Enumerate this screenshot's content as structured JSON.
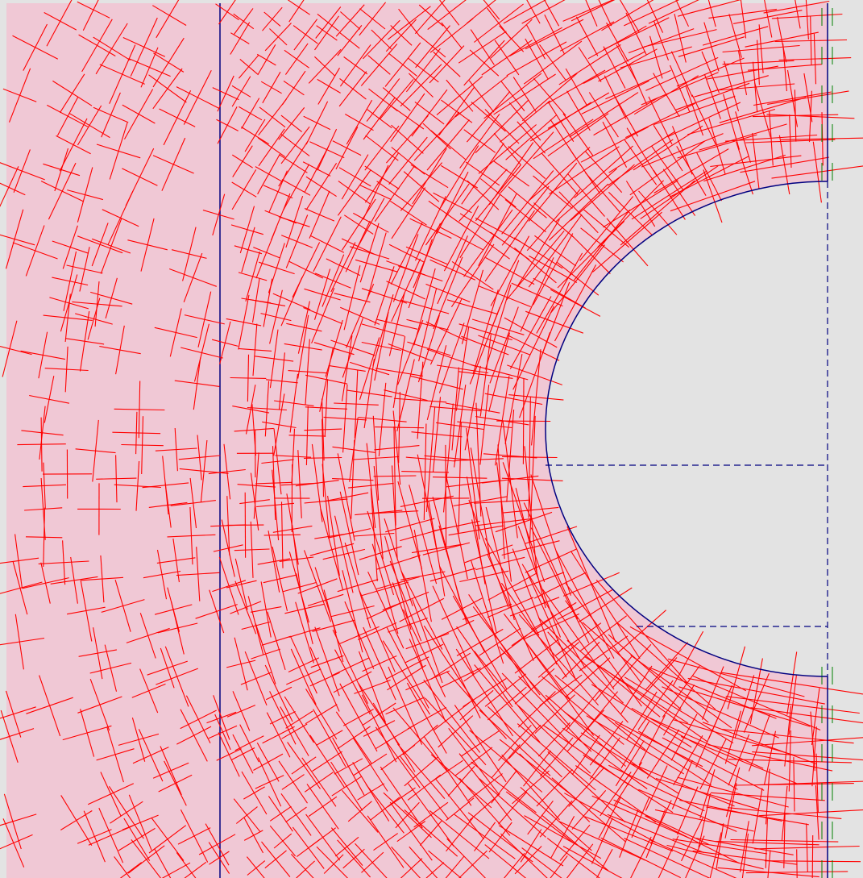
{
  "viewer": {
    "background_color": "#e3e3e3",
    "domain_fill_color": "#f0c8d5",
    "boundary_color": "#000080",
    "cross_color": "#ff0000",
    "support_marker_color": "#008000"
  },
  "model": {
    "geometry": "plate-with-circular-hole",
    "hole_shape": "semicircle",
    "symmetry_boundary": "right-edge",
    "element_edge_line": "vertical-left",
    "constraint_lines": "dashed-horizontal"
  },
  "plot": {
    "type": "principal-stress-crosses",
    "show_domain": true,
    "show_boundary": true,
    "show_support_markers": true
  }
}
